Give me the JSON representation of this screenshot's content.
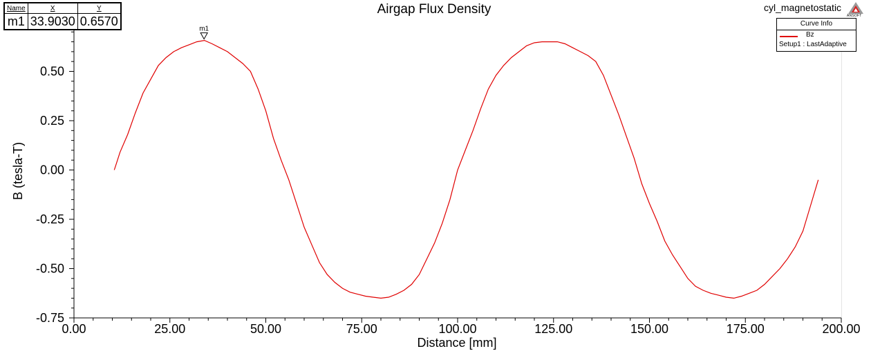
{
  "project": {
    "name": "cyl_magnetostatic",
    "logo_text": "ANSOFT"
  },
  "marker_table": {
    "headers": {
      "name": "Name",
      "x": "X",
      "y": "Y"
    },
    "row": {
      "name": "m1",
      "x": "33.9030",
      "y": "0.6570"
    }
  },
  "legend": {
    "title": "Curve Info",
    "series_name": "Bz",
    "setup": "Setup1 : LastAdaptive"
  },
  "chart_data": {
    "type": "line",
    "title": "Airgap Flux Density",
    "xlabel": "Distance [mm]",
    "ylabel": "B (tesla-T)",
    "xlim": [
      0,
      200
    ],
    "ylim": [
      -0.75,
      0.75
    ],
    "x_ticks": [
      0,
      25,
      50,
      75,
      100,
      125,
      150,
      175,
      200
    ],
    "x_tick_labels": [
      "0.00",
      "25.00",
      "50.00",
      "75.00",
      "100.00",
      "125.00",
      "150.00",
      "175.00",
      "200.00"
    ],
    "y_ticks": [
      -0.75,
      -0.5,
      -0.25,
      0,
      0.25,
      0.5
    ],
    "y_tick_labels": [
      "-0.75",
      "-0.50",
      "-0.25",
      "0.00",
      "0.25",
      "0.50"
    ],
    "grid": true,
    "legend_position": "top-right",
    "series": [
      {
        "name": "Bz",
        "color": "#e00000",
        "x": [
          10.5,
          11,
          12,
          14,
          16,
          18,
          20,
          22,
          24,
          26,
          28,
          30,
          32,
          34,
          36,
          38,
          40,
          42,
          44,
          46,
          48,
          50,
          52,
          54,
          56,
          58,
          60,
          62,
          64,
          66,
          68,
          70,
          72,
          74,
          76,
          78,
          80,
          82,
          84,
          86,
          88,
          90,
          92,
          94,
          96,
          98,
          100,
          102,
          104,
          106,
          108,
          110,
          112,
          114,
          116,
          118,
          120,
          122,
          124,
          126,
          128,
          130,
          132,
          134,
          136,
          138,
          140,
          142,
          144,
          146,
          148,
          150,
          152,
          154,
          156,
          158,
          160,
          162,
          164,
          166,
          168,
          170,
          172,
          174,
          176,
          178,
          180,
          182,
          184,
          186,
          188,
          190,
          192,
          194
        ],
        "y": [
          0.0,
          0.03,
          0.09,
          0.18,
          0.29,
          0.39,
          0.46,
          0.53,
          0.57,
          0.6,
          0.62,
          0.635,
          0.65,
          0.657,
          0.64,
          0.62,
          0.6,
          0.57,
          0.54,
          0.5,
          0.41,
          0.3,
          0.16,
          0.05,
          -0.05,
          -0.17,
          -0.29,
          -0.38,
          -0.47,
          -0.53,
          -0.57,
          -0.6,
          -0.62,
          -0.63,
          -0.64,
          -0.645,
          -0.65,
          -0.645,
          -0.63,
          -0.61,
          -0.58,
          -0.53,
          -0.45,
          -0.37,
          -0.27,
          -0.15,
          0.0,
          0.1,
          0.2,
          0.31,
          0.41,
          0.48,
          0.53,
          0.57,
          0.6,
          0.63,
          0.645,
          0.65,
          0.65,
          0.65,
          0.64,
          0.62,
          0.6,
          0.58,
          0.55,
          0.48,
          0.38,
          0.28,
          0.17,
          0.06,
          -0.07,
          -0.17,
          -0.26,
          -0.36,
          -0.43,
          -0.49,
          -0.55,
          -0.59,
          -0.61,
          -0.625,
          -0.635,
          -0.645,
          -0.65,
          -0.64,
          -0.625,
          -0.61,
          -0.58,
          -0.54,
          -0.5,
          -0.45,
          -0.39,
          -0.31,
          -0.18,
          -0.05
        ]
      }
    ],
    "marker": {
      "name": "m1",
      "x": 33.903,
      "y": 0.657
    }
  }
}
